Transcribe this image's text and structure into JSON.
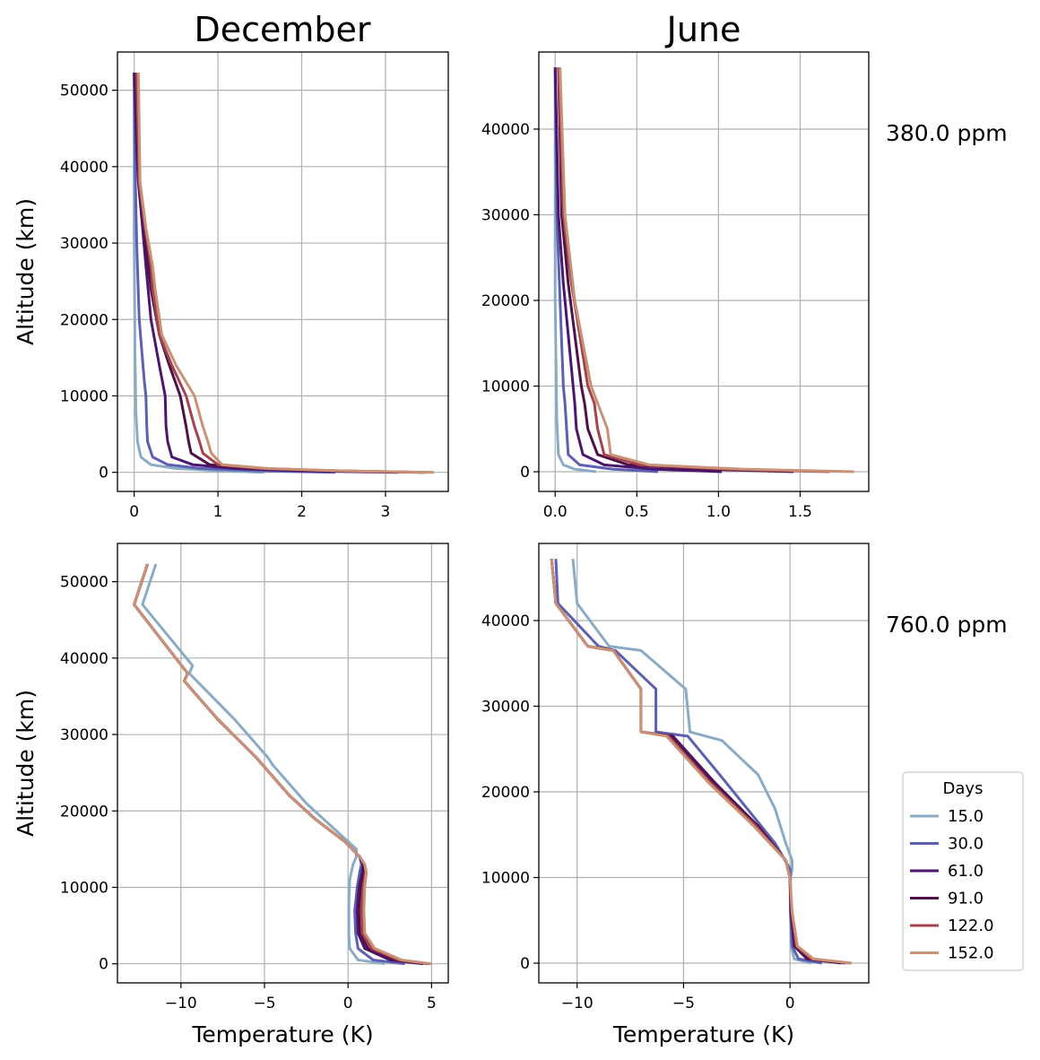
{
  "columns": [
    "December",
    "June"
  ],
  "rows": [
    "380.0 ppm",
    "760.0 ppm"
  ],
  "xlabel": "Temperature (K)",
  "ylabel": "Altitude (km)",
  "legend": {
    "title": "Days",
    "entries": [
      {
        "label": "15.0",
        "color": "#8aabc4"
      },
      {
        "label": "30.0",
        "color": "#5d5fb0"
      },
      {
        "label": "61.0",
        "color": "#4a1670"
      },
      {
        "label": "91.0",
        "color": "#4d1148"
      },
      {
        "label": "122.0",
        "color": "#a4434e"
      },
      {
        "label": "152.0",
        "color": "#c99277"
      }
    ]
  },
  "chart_data": [
    {
      "type": "line",
      "panel": "top-left",
      "xlim": [
        -0.2,
        3.75
      ],
      "ylim": [
        -2500,
        55000
      ],
      "xticks": [
        0,
        1,
        2,
        3
      ],
      "xticklabels": [
        "0",
        "1",
        "2",
        "3"
      ],
      "yticks": [
        0,
        10000,
        20000,
        30000,
        40000,
        50000
      ],
      "yticklabels": [
        "0",
        "10000",
        "20000",
        "30000",
        "40000",
        "50000"
      ],
      "grid": true,
      "title": "December",
      "ylabel": "Altitude (km)",
      "xlabel": "",
      "row_label": "380.0 ppm",
      "series": [
        {
          "name": "15.0",
          "x": [
            1.55,
            1.0,
            0.5,
            0.2,
            0.08,
            0.04,
            0.02,
            0.01,
            0,
            0
          ],
          "y": [
            0,
            200,
            500,
            1000,
            2000,
            4000,
            8000,
            15000,
            30000,
            52300
          ]
        },
        {
          "name": "30.0",
          "x": [
            2.4,
            1.5,
            0.8,
            0.4,
            0.22,
            0.16,
            0.15,
            0.14,
            0.12,
            0.06,
            0.03,
            0.01,
            0
          ],
          "y": [
            0,
            200,
            500,
            1000,
            2000,
            4000,
            6000,
            10000,
            12000,
            20000,
            30000,
            40000,
            52300
          ]
        },
        {
          "name": "61.0",
          "x": [
            3.15,
            2.0,
            1.2,
            0.7,
            0.45,
            0.4,
            0.38,
            0.37,
            0.3,
            0.2,
            0.14,
            0.1,
            0.05,
            0.03,
            0
          ],
          "y": [
            0,
            200,
            500,
            1000,
            2000,
            4000,
            6000,
            10000,
            14000,
            20000,
            27000,
            32000,
            38000,
            42000,
            52300
          ]
        },
        {
          "name": "91.0",
          "x": [
            3.45,
            2.3,
            1.4,
            0.9,
            0.68,
            0.65,
            0.62,
            0.55,
            0.42,
            0.3,
            0.2,
            0.17,
            0.12,
            0.06,
            0.02
          ],
          "y": [
            0,
            200,
            500,
            1000,
            2500,
            4000,
            6000,
            10000,
            14000,
            18000,
            24000,
            27000,
            32000,
            38000,
            52300
          ]
        },
        {
          "name": "122.0",
          "x": [
            3.5,
            2.4,
            1.5,
            1.0,
            0.82,
            0.78,
            0.72,
            0.62,
            0.45,
            0.3,
            0.22,
            0.2,
            0.13,
            0.06,
            0.03
          ],
          "y": [
            0,
            200,
            500,
            1000,
            2500,
            4000,
            6000,
            10000,
            14000,
            18000,
            24000,
            27000,
            32000,
            38000,
            52300
          ]
        },
        {
          "name": "152.0",
          "x": [
            3.58,
            2.5,
            1.6,
            1.05,
            0.92,
            0.88,
            0.82,
            0.72,
            0.5,
            0.33,
            0.25,
            0.22,
            0.14,
            0.07,
            0.05
          ],
          "y": [
            0,
            200,
            500,
            1000,
            2500,
            4000,
            6000,
            10000,
            14000,
            18000,
            24000,
            27000,
            32000,
            38000,
            52300
          ]
        }
      ]
    },
    {
      "type": "line",
      "panel": "top-right",
      "xlim": [
        -0.1,
        1.92
      ],
      "ylim": [
        -2300,
        49000
      ],
      "xticks": [
        0,
        0.5,
        1.0,
        1.5
      ],
      "xticklabels": [
        "0.0",
        "0.5",
        "1.0",
        "1.5"
      ],
      "yticks": [
        0,
        10000,
        20000,
        30000,
        40000
      ],
      "yticklabels": [
        "0",
        "10000",
        "20000",
        "30000",
        "40000"
      ],
      "grid": true,
      "title": "June",
      "ylabel": "",
      "xlabel": "",
      "row_label": "380.0 ppm",
      "series": [
        {
          "name": "15.0",
          "x": [
            0.25,
            0.12,
            0.05,
            0.02,
            0.01,
            0,
            0
          ],
          "y": [
            0,
            300,
            800,
            2000,
            6000,
            20000,
            47200
          ]
        },
        {
          "name": "30.0",
          "x": [
            0.63,
            0.35,
            0.15,
            0.08,
            0.07,
            0.06,
            0.05,
            0.03,
            0.01,
            0
          ],
          "y": [
            0,
            300,
            800,
            2000,
            5000,
            8000,
            10000,
            20000,
            30000,
            47200
          ]
        },
        {
          "name": "61.0",
          "x": [
            1.02,
            0.6,
            0.3,
            0.17,
            0.13,
            0.12,
            0.11,
            0.08,
            0.05,
            0.02,
            0
          ],
          "y": [
            0,
            300,
            800,
            2000,
            5000,
            8000,
            10000,
            16000,
            22000,
            30000,
            47200
          ]
        },
        {
          "name": "91.0",
          "x": [
            1.46,
            0.9,
            0.45,
            0.26,
            0.2,
            0.18,
            0.16,
            0.12,
            0.08,
            0.04,
            0.02
          ],
          "y": [
            0,
            300,
            800,
            2000,
            5000,
            8000,
            10000,
            16000,
            22000,
            30000,
            47200
          ]
        },
        {
          "name": "122.0",
          "x": [
            1.68,
            1.05,
            0.52,
            0.3,
            0.26,
            0.24,
            0.2,
            0.15,
            0.1,
            0.05,
            0.02
          ],
          "y": [
            0,
            300,
            800,
            2000,
            5000,
            8000,
            10000,
            16000,
            22000,
            30000,
            47200
          ]
        },
        {
          "name": "152.0",
          "x": [
            1.83,
            1.15,
            0.58,
            0.34,
            0.32,
            0.3,
            0.26,
            0.22,
            0.18,
            0.12,
            0.06,
            0.03
          ],
          "y": [
            0,
            300,
            800,
            2000,
            5000,
            6000,
            8000,
            10000,
            14000,
            20000,
            30000,
            47200
          ]
        }
      ]
    },
    {
      "type": "line",
      "panel": "bottom-left",
      "xlim": [
        -13.8,
        6.0
      ],
      "ylim": [
        -2500,
        55000
      ],
      "xticks": [
        -10,
        -5,
        0,
        5
      ],
      "xticklabels": [
        "−10",
        "−5",
        "0",
        "5"
      ],
      "yticks": [
        0,
        10000,
        20000,
        30000,
        40000,
        50000
      ],
      "yticklabels": [
        "0",
        "10000",
        "20000",
        "30000",
        "40000",
        "50000"
      ],
      "grid": true,
      "title": "",
      "ylabel": "Altitude (km)",
      "xlabel": "Temperature (K)",
      "row_label": "760.0 ppm",
      "series": [
        {
          "name": "15.0",
          "x": [
            2.2,
            0.6,
            0.1,
            0.05,
            0.05,
            0.1,
            0.3,
            0.5,
            0.5,
            -0.5,
            -2.5,
            -4.5,
            -4.8,
            -6.8,
            -9.5,
            -9.3,
            -12.3,
            -11.5
          ],
          "y": [
            0,
            500,
            2000,
            4000,
            8000,
            11000,
            13000,
            14000,
            15000,
            17000,
            21000,
            26000,
            27000,
            32000,
            38000,
            39000,
            47000,
            52300
          ]
        },
        {
          "name": "30.0",
          "x": [
            3.4,
            1.5,
            0.6,
            0.45,
            0.4,
            0.55,
            0.7,
            0.8,
            0.7,
            -0.2,
            -2.0,
            -3.5,
            -5.5,
            -7.8,
            -9.8,
            -9.6,
            -12.8,
            -12.0
          ],
          "y": [
            0,
            500,
            2000,
            4000,
            7000,
            10000,
            12000,
            13000,
            14000,
            16000,
            19000,
            22000,
            27000,
            32000,
            37000,
            38000,
            47000,
            52300
          ]
        },
        {
          "name": "61.0",
          "x": [
            4.5,
            2.5,
            1.0,
            0.6,
            0.55,
            0.65,
            0.85,
            0.9,
            0.7,
            -0.2,
            -2.0,
            -3.5,
            -5.5,
            -7.8,
            -9.8,
            -9.6,
            -12.8,
            -12.0
          ],
          "y": [
            0,
            500,
            2000,
            4000,
            7000,
            10000,
            12000,
            13000,
            14000,
            16000,
            19000,
            22000,
            27000,
            32000,
            37000,
            38000,
            47000,
            52300
          ]
        },
        {
          "name": "91.0",
          "x": [
            4.8,
            2.8,
            1.2,
            0.7,
            0.65,
            0.75,
            0.95,
            0.95,
            0.7,
            -0.2,
            -2.0,
            -3.5,
            -5.5,
            -7.8,
            -9.8,
            -9.6,
            -12.8,
            -12.0
          ],
          "y": [
            0,
            500,
            2000,
            4000,
            7000,
            10000,
            12000,
            13000,
            14000,
            16000,
            19000,
            22000,
            27000,
            32000,
            37000,
            38000,
            47000,
            52300
          ]
        },
        {
          "name": "122.0",
          "x": [
            4.9,
            3.0,
            1.4,
            0.85,
            0.8,
            0.9,
            1.05,
            1.0,
            0.7,
            -0.2,
            -2.0,
            -3.5,
            -5.5,
            -7.8,
            -9.8,
            -9.6,
            -12.8,
            -12.0
          ],
          "y": [
            0,
            500,
            2000,
            4000,
            7000,
            10000,
            12000,
            13000,
            14000,
            16000,
            19000,
            22000,
            27000,
            32000,
            37000,
            38000,
            47000,
            52300
          ]
        },
        {
          "name": "152.0",
          "x": [
            5.0,
            3.2,
            1.6,
            1.0,
            0.95,
            1.0,
            1.1,
            1.0,
            0.7,
            -0.2,
            -2.0,
            -3.5,
            -5.5,
            -7.8,
            -9.8,
            -9.6,
            -12.8,
            -12.0
          ],
          "y": [
            0,
            500,
            2000,
            4000,
            7000,
            10000,
            12000,
            13000,
            14000,
            16000,
            19000,
            22000,
            27000,
            32000,
            37000,
            38000,
            47000,
            52300
          ]
        }
      ]
    },
    {
      "type": "line",
      "panel": "bottom-right",
      "xlim": [
        -11.8,
        3.7
      ],
      "ylim": [
        -2300,
        49000
      ],
      "xticks": [
        -10,
        -5,
        0
      ],
      "xticklabels": [
        "−10",
        "−5",
        "0"
      ],
      "yticks": [
        0,
        10000,
        20000,
        30000,
        40000
      ],
      "yticklabels": [
        "0",
        "10000",
        "20000",
        "30000",
        "40000"
      ],
      "grid": true,
      "title": "",
      "ylabel": "",
      "xlabel": "Temperature (K)",
      "row_label": "760.0 ppm",
      "series": [
        {
          "name": "15.0",
          "x": [
            1.0,
            0.2,
            0.05,
            0.02,
            0.03,
            0.1,
            0.1,
            -0.2,
            -0.7,
            -1.5,
            -3.2,
            -4.7,
            -4.9,
            -7.0,
            -8.5,
            -10.0,
            -10.2
          ],
          "y": [
            0,
            500,
            2000,
            6000,
            10000,
            11000,
            12000,
            14000,
            18000,
            22000,
            26000,
            27000,
            32000,
            36500,
            37000,
            42000,
            47200
          ]
        },
        {
          "name": "30.0",
          "x": [
            1.5,
            0.4,
            0.1,
            0.02,
            0.0,
            0.0,
            -0.7,
            -2.0,
            -3.3,
            -4.8,
            -6.3,
            -6.3,
            -8.2,
            -9.0,
            -10.9,
            -11.0
          ],
          "y": [
            0,
            500,
            2000,
            6000,
            10000,
            11000,
            14000,
            18000,
            22000,
            26500,
            27000,
            32000,
            36500,
            37000,
            42000,
            47200
          ]
        },
        {
          "name": "61.0",
          "x": [
            2.4,
            0.8,
            0.2,
            0.05,
            0.0,
            -0.2,
            -1.5,
            -3.5,
            -5.5,
            -7.0,
            -7.0,
            -8.3,
            -9.5,
            -11.0,
            -11.2
          ],
          "y": [
            0,
            500,
            2000,
            6000,
            10000,
            12000,
            16000,
            21000,
            26500,
            27000,
            32000,
            36500,
            37000,
            42000,
            47200
          ]
        },
        {
          "name": "91.0",
          "x": [
            2.6,
            0.9,
            0.25,
            0.05,
            0.0,
            -0.2,
            -1.5,
            -3.6,
            -5.6,
            -7.0,
            -7.0,
            -8.3,
            -9.5,
            -11.0,
            -11.2
          ],
          "y": [
            0,
            500,
            2000,
            6000,
            10000,
            12000,
            16000,
            21000,
            26500,
            27000,
            32000,
            36500,
            37000,
            42000,
            47200
          ]
        },
        {
          "name": "122.0",
          "x": [
            2.8,
            1.0,
            0.3,
            0.08,
            0.0,
            -0.2,
            -1.6,
            -3.7,
            -5.7,
            -7.0,
            -7.0,
            -8.3,
            -9.5,
            -11.0,
            -11.2
          ],
          "y": [
            0,
            500,
            2000,
            6000,
            10000,
            12000,
            16000,
            21000,
            26500,
            27000,
            32000,
            36500,
            37000,
            42000,
            47200
          ]
        },
        {
          "name": "152.0",
          "x": [
            2.9,
            1.1,
            0.35,
            0.1,
            0.0,
            -0.2,
            -1.7,
            -3.8,
            -5.8,
            -7.0,
            -7.0,
            -8.3,
            -9.5,
            -11.0,
            -11.2
          ],
          "y": [
            0,
            500,
            2000,
            6000,
            10000,
            12000,
            16000,
            21000,
            26500,
            27000,
            32000,
            36500,
            37000,
            42000,
            47200
          ]
        }
      ]
    }
  ]
}
